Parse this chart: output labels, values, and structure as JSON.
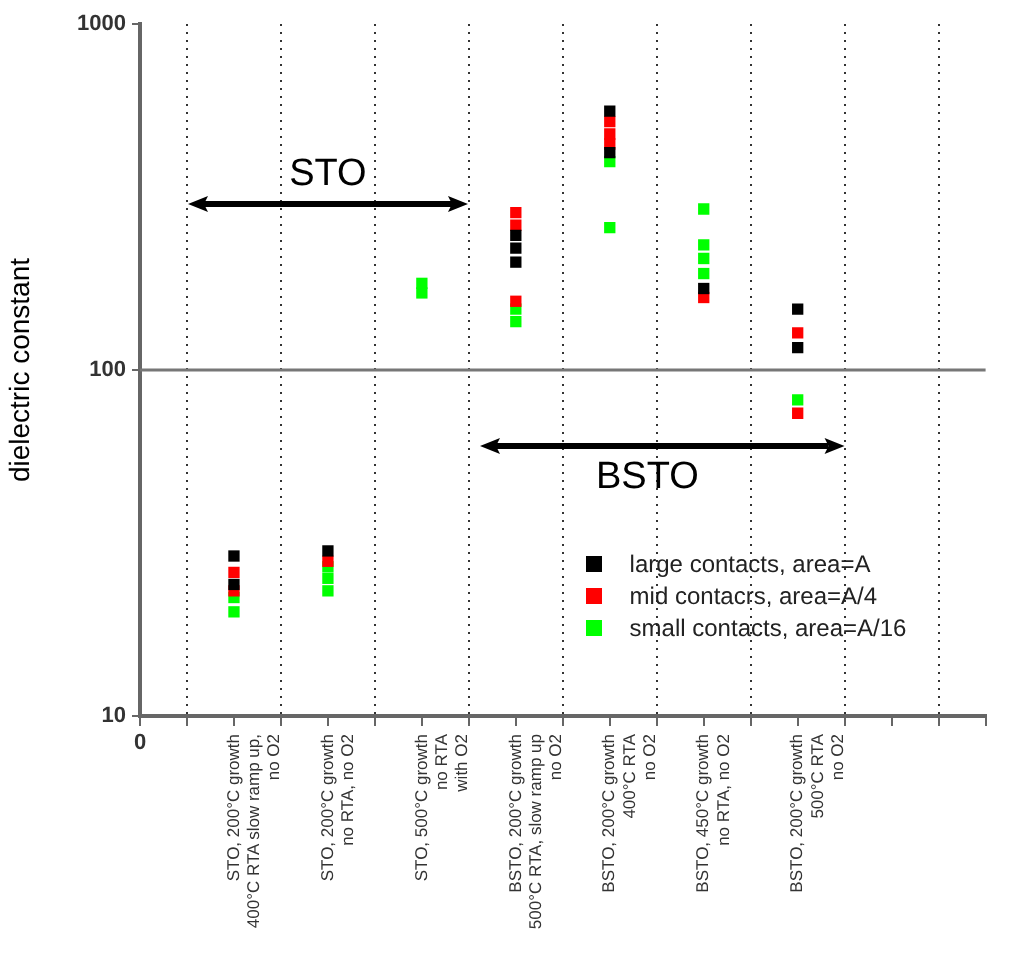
{
  "chart_data": {
    "type": "scatter",
    "categories": [
      "STO, 200°C growth\n400°C RTA slow ramp up,\nno O2",
      "STO, 200°C growth\nno RTA, no O2",
      "STO, 500°C growth\nno RTA\nwith O2",
      "BSTO, 200°C growth\n500°C RTA, slow ramp up\nno O2",
      "BSTO, 200°C growth\n400°C RTA\nno O2",
      "BSTO, 450°C growth\nno RTA, no O2",
      "BSTO, 200°C growth\n500°C RTA\nno O2"
    ],
    "ylabel": "dielectric constant",
    "log": "y",
    "ylim": [
      10,
      1000
    ],
    "yticks": [
      10,
      100,
      1000
    ],
    "grid": true,
    "legend": "bottom right",
    "marker": "square",
    "annotations": [
      "STO",
      "BSTO",
      "0"
    ],
    "series": [
      {
        "name": "large contacts, area=A",
        "color": "#000000",
        "x": [
          "STO, 200°C growth\n400°C RTA slow ramp up,\nno O2",
          "STO, 200°C growth\n400°C RTA slow ramp up,\nno O2",
          "STO, 200°C growth\nno RTA, no O2",
          "BSTO, 200°C growth\n500°C RTA, slow ramp up\nno O2",
          "BSTO, 200°C growth\n500°C RTA, slow ramp up\nno O2",
          "BSTO, 200°C growth\n500°C RTA, slow ramp up\nno O2",
          "BSTO, 200°C growth\n400°C RTA\nno O2",
          "BSTO, 200°C growth\n400°C RTA\nno O2",
          "BSTO, 450°C growth\nno RTA, no O2",
          "BSTO, 200°C growth\n500°C RTA\nno O2",
          "BSTO, 200°C growth\n500°C RTA\nno O2"
        ],
        "values": [
          29,
          24,
          30,
          245,
          225,
          205,
          560,
          425,
          172,
          150,
          116
        ]
      },
      {
        "name": "mid contacrs, area=A/4",
        "color": "#ff0000",
        "x": [
          "STO, 200°C growth\n400°C RTA slow ramp up,\nno O2",
          "STO, 200°C growth\n400°C RTA slow ramp up,\nno O2",
          "STO, 200°C growth\nno RTA, no O2",
          "BSTO, 200°C growth\n500°C RTA, slow ramp up\nno O2",
          "BSTO, 200°C growth\n500°C RTA, slow ramp up\nno O2",
          "BSTO, 200°C growth\n500°C RTA, slow ramp up\nno O2",
          "BSTO, 200°C growth\n400°C RTA\nno O2",
          "BSTO, 200°C growth\n400°C RTA\nno O2",
          "BSTO, 200°C growth\n400°C RTA\nno O2",
          "BSTO, 450°C growth\nno RTA, no O2",
          "BSTO, 200°C growth\n500°C RTA\nno O2",
          "BSTO, 200°C growth\n500°C RTA\nno O2"
        ],
        "values": [
          26,
          23,
          28,
          285,
          262,
          158,
          522,
          481,
          450,
          162,
          128,
          75
        ]
      },
      {
        "name": "small contacts, area=A/16",
        "color": "#00ff00",
        "x": [
          "STO, 200°C growth\n400°C RTA slow ramp up,\nno O2",
          "STO, 200°C growth\n400°C RTA slow ramp up,\nno O2",
          "STO, 200°C growth\nno RTA, no O2",
          "STO, 200°C growth\nno RTA, no O2",
          "STO, 200°C growth\nno RTA, no O2",
          "STO, 500°C growth\nno RTA\nwith O2",
          "STO, 500°C growth\nno RTA\nwith O2",
          "BSTO, 200°C growth\n500°C RTA, slow ramp up\nno O2",
          "BSTO, 200°C growth\n500°C RTA, slow ramp up\nno O2",
          "BSTO, 200°C growth\n400°C RTA\nno O2",
          "BSTO, 200°C growth\n400°C RTA\nno O2",
          "BSTO, 450°C growth\nno RTA, no O2",
          "BSTO, 450°C growth\nno RTA, no O2",
          "BSTO, 450°C growth\nno RTA, no O2",
          "BSTO, 450°C growth\nno RTA, no O2",
          "BSTO, 200°C growth\n500°C RTA\nno O2"
        ],
        "values": [
          22,
          20,
          27,
          25,
          23,
          178,
          167,
          150,
          138,
          400,
          258,
          292,
          230,
          210,
          190,
          82
        ]
      }
    ]
  }
}
